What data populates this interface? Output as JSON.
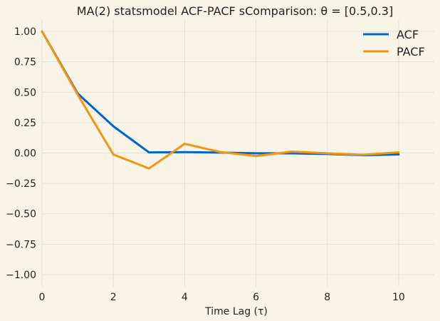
{
  "chart_data": {
    "type": "line",
    "title": "MA(2) statsmodel ACF-PACF sComparison: θ = [0.5,0.3]",
    "xlabel": "Time Lag (τ)",
    "ylabel": "",
    "x": [
      0,
      1,
      2,
      3,
      4,
      5,
      6,
      7,
      8,
      9,
      10
    ],
    "xlim": [
      0,
      11
    ],
    "ylim": [
      -1.1,
      1.1
    ],
    "xticks": [
      0,
      2,
      4,
      6,
      8,
      10
    ],
    "yticks": [
      1.0,
      0.75,
      0.5,
      0.25,
      0.0,
      -0.25,
      -0.5,
      -0.75,
      -1.0
    ],
    "xtick_labels": [
      "0",
      "2",
      "4",
      "6",
      "8",
      "10"
    ],
    "ytick_labels": [
      "1.00",
      "0.75",
      "0.50",
      "0.25",
      "0.00",
      "−0.25",
      "−0.50",
      "−0.75",
      "−1.00"
    ],
    "grid": true,
    "legend_position": "top-right",
    "series": [
      {
        "name": "ACF",
        "color": "#0066cc",
        "values": [
          1.0,
          0.49,
          0.22,
          0.005,
          0.007,
          0.004,
          -0.002,
          -0.003,
          -0.008,
          -0.018,
          -0.012
        ]
      },
      {
        "name": "PACF",
        "color": "#f5950f",
        "values": [
          1.0,
          0.48,
          -0.012,
          -0.127,
          0.076,
          0.008,
          -0.025,
          0.012,
          -0.002,
          -0.015,
          0.006
        ]
      }
    ]
  }
}
